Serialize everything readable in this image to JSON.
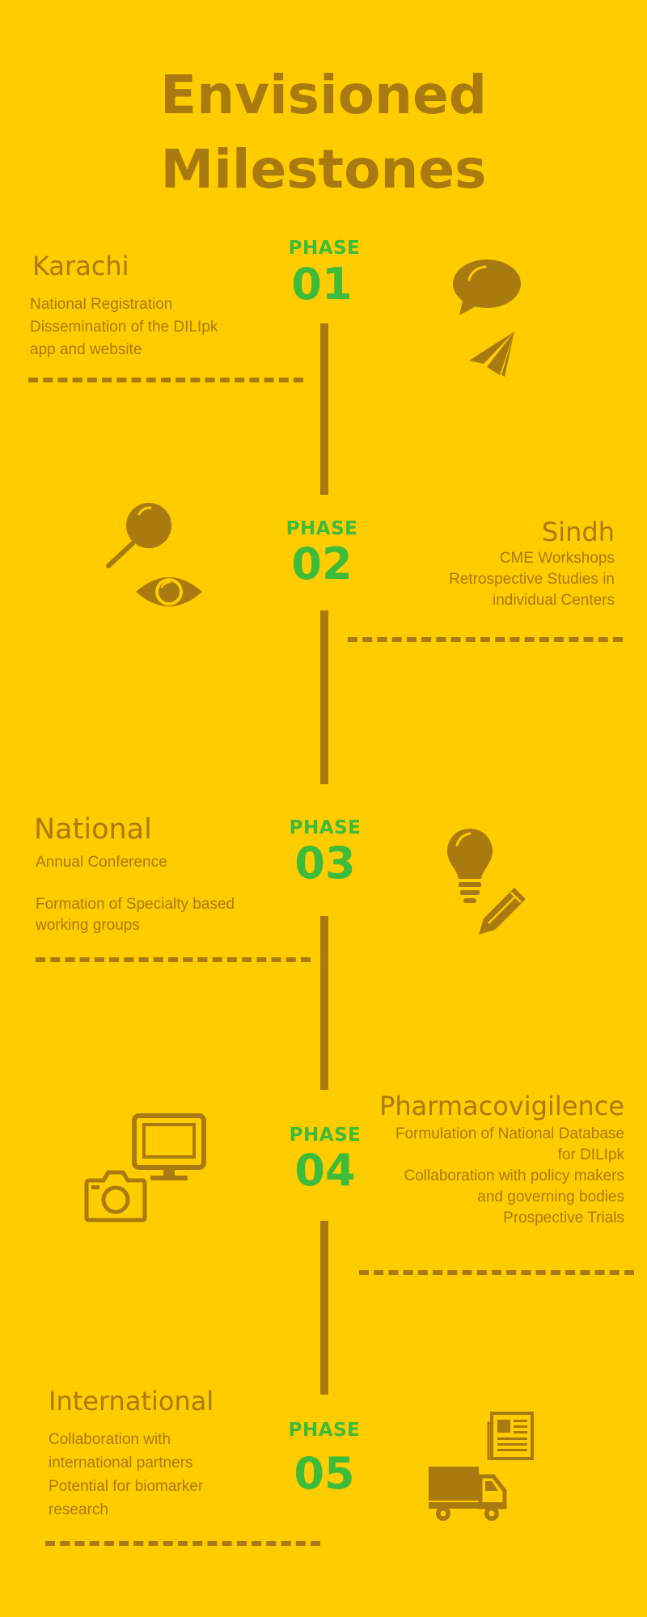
{
  "title": {
    "line1": "Envisioned",
    "line2": "Milestones"
  },
  "colors": {
    "background": "#FFCC00",
    "brown": "#A97A10",
    "green": "#3DBB3A"
  },
  "phases": [
    {
      "label": "PHASE",
      "number": "01",
      "region": "Karachi",
      "items": [
        "National Registration",
        "Dissemination of the DILIpk",
        "app and website"
      ],
      "icons": [
        "chat-bubble-icon",
        "paper-plane-icon"
      ]
    },
    {
      "label": "PHASE",
      "number": "02",
      "region": "Sindh",
      "items": [
        "CME Workshops",
        "Retrospective Studies in",
        "individual Centers"
      ],
      "icons": [
        "magnifier-icon",
        "eye-icon"
      ]
    },
    {
      "label": "PHASE",
      "number": "03",
      "region": "National",
      "items": [
        "Annual Conference",
        "",
        "Formation of Specialty based",
        "working groups"
      ],
      "icons": [
        "lightbulb-icon",
        "pencil-icon"
      ]
    },
    {
      "label": "PHASE",
      "number": "04",
      "region": "Pharmacovigilence",
      "items": [
        "Formulation of National Database",
        "for DILIpk",
        "Collaboration with policy makers",
        "and governing bodies",
        "Prospective Trials"
      ],
      "icons": [
        "monitor-icon",
        "camera-icon"
      ]
    },
    {
      "label": "PHASE",
      "number": "05",
      "region": "International",
      "items": [
        "Collaboration with",
        "international partners",
        "Potential for biomarker",
        "research"
      ],
      "icons": [
        "newspaper-icon",
        "truck-icon"
      ]
    }
  ]
}
